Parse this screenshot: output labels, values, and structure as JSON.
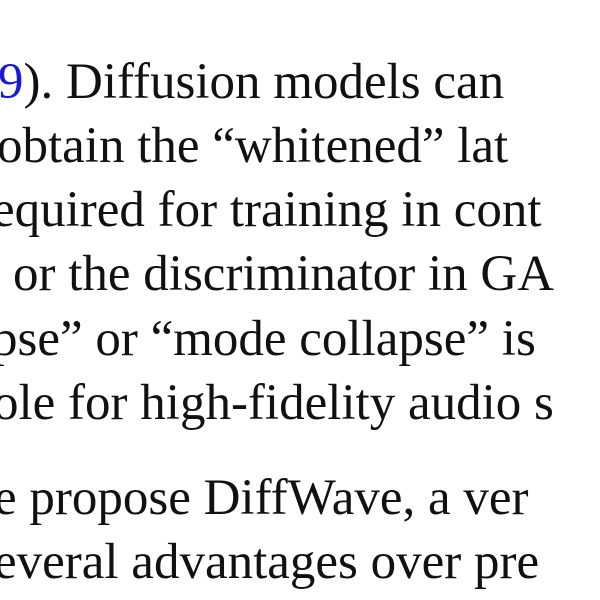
{
  "paragraph1": {
    "line1": {
      "citation": "9",
      "text": "). Diffusion models can"
    },
    "line2": "obtain the “whitened” lat",
    "line3": "equired for training in cont",
    "line4": "or the discriminator in GA",
    "line5": "pse” or “mode collapse” is",
    "line6": "ole for high-fidelity audio s"
  },
  "paragraph2": {
    "line1": "e propose DiffWave, a ver",
    "line2": "everal advantages over pre"
  },
  "colors": {
    "text": "#111111",
    "citation_link": "#1a1ad6",
    "background": "#ffffff"
  }
}
